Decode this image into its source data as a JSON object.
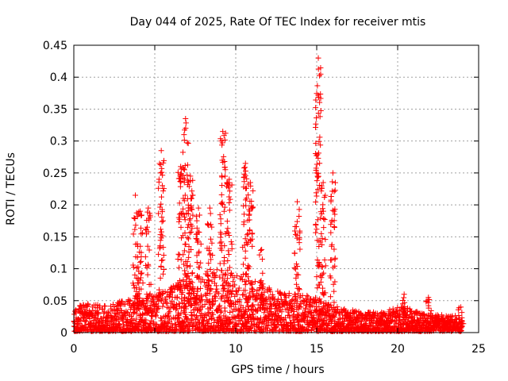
{
  "chart_data": {
    "type": "scatter",
    "title": "Day 044 of 2025, Rate Of TEC Index for receiver mtis",
    "xlabel": "GPS time / hours",
    "ylabel": "ROTI / TECUs",
    "xlim": [
      0,
      25
    ],
    "ylim": [
      0,
      0.45
    ],
    "xticks": [
      "0",
      "5",
      "10",
      "15",
      "20",
      "25"
    ],
    "yticks": [
      "0",
      "0.05",
      "0.1",
      "0.15",
      "0.2",
      "0.25",
      "0.3",
      "0.35",
      "0.4",
      "0.45"
    ],
    "grid": true,
    "marker": "+",
    "color": "#ff0000",
    "x_coverage": [
      0,
      24
    ],
    "peaks": [
      {
        "x": 3.8,
        "y": 0.215
      },
      {
        "x": 4.1,
        "y": 0.19
      },
      {
        "x": 4.6,
        "y": 0.195
      },
      {
        "x": 5.4,
        "y": 0.285
      },
      {
        "x": 6.6,
        "y": 0.26
      },
      {
        "x": 6.9,
        "y": 0.335
      },
      {
        "x": 7.2,
        "y": 0.245
      },
      {
        "x": 7.7,
        "y": 0.195
      },
      {
        "x": 8.4,
        "y": 0.195
      },
      {
        "x": 9.2,
        "y": 0.315
      },
      {
        "x": 9.6,
        "y": 0.24
      },
      {
        "x": 10.6,
        "y": 0.265
      },
      {
        "x": 10.9,
        "y": 0.235
      },
      {
        "x": 11.6,
        "y": 0.13
      },
      {
        "x": 13.8,
        "y": 0.205
      },
      {
        "x": 15.1,
        "y": 0.43
      },
      {
        "x": 15.4,
        "y": 0.235
      },
      {
        "x": 16.0,
        "y": 0.25
      },
      {
        "x": 20.4,
        "y": 0.06
      },
      {
        "x": 21.9,
        "y": 0.055
      },
      {
        "x": 23.9,
        "y": 0.04
      }
    ],
    "baseline": [
      {
        "x": 0,
        "y": 0.04
      },
      {
        "x": 1,
        "y": 0.045
      },
      {
        "x": 2,
        "y": 0.04
      },
      {
        "x": 3,
        "y": 0.05
      },
      {
        "x": 4,
        "y": 0.06
      },
      {
        "x": 5,
        "y": 0.06
      },
      {
        "x": 6,
        "y": 0.07
      },
      {
        "x": 7,
        "y": 0.08
      },
      {
        "x": 8,
        "y": 0.09
      },
      {
        "x": 9,
        "y": 0.1
      },
      {
        "x": 10,
        "y": 0.09
      },
      {
        "x": 11,
        "y": 0.08
      },
      {
        "x": 12,
        "y": 0.07
      },
      {
        "x": 13,
        "y": 0.06
      },
      {
        "x": 14,
        "y": 0.06
      },
      {
        "x": 15,
        "y": 0.05
      },
      {
        "x": 16,
        "y": 0.04
      },
      {
        "x": 17,
        "y": 0.035
      },
      {
        "x": 18,
        "y": 0.03
      },
      {
        "x": 19,
        "y": 0.03
      },
      {
        "x": 20,
        "y": 0.04
      },
      {
        "x": 21,
        "y": 0.035
      },
      {
        "x": 22,
        "y": 0.03
      },
      {
        "x": 23,
        "y": 0.025
      },
      {
        "x": 24,
        "y": 0.025
      }
    ]
  }
}
